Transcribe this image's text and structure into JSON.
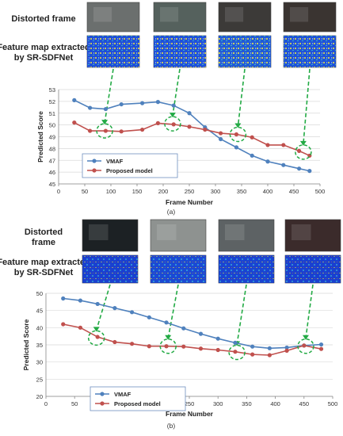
{
  "panels": [
    {
      "caption": "(a)",
      "row1_label": "Distorted frame",
      "row2_label_line1": "Feature map extracted",
      "row2_label_line2": "by SR-SDFNet",
      "thumb_colors": [
        "#6b6f6e",
        "#55615d",
        "#3c3a38",
        "#3a3431"
      ],
      "map_colors": [
        "#1f4fd8",
        "#2457e0",
        "#2a7fd0",
        "#1f5fd8"
      ]
    },
    {
      "caption": "(b)",
      "row1_label_line1": "Distorted",
      "row1_label_line2": "frame",
      "row2_label_line1": "Feature map extracted",
      "row2_label_line2": "by SR-SDFNet",
      "thumb_colors": [
        "#1c2124",
        "#8e9290",
        "#5d6264",
        "#3b2b2b"
      ],
      "map_colors": [
        "#1a3fd0",
        "#1d55d8",
        "#1a48d4",
        "#1a3fd0"
      ]
    }
  ],
  "chart_data": [
    {
      "type": "line",
      "title": "",
      "xlabel": "Frame Number",
      "ylabel": "Predicted  Score",
      "xlim": [
        0,
        500
      ],
      "ylim": [
        45,
        53
      ],
      "xticks": [
        0,
        50,
        100,
        150,
        200,
        250,
        300,
        350,
        400,
        450,
        500
      ],
      "yticks": [
        45,
        46,
        47,
        48,
        49,
        50,
        51,
        52,
        53
      ],
      "legend_position": "lower-left",
      "grid": "horizontal",
      "highlight_points": [
        {
          "x": 88,
          "y": 49.5
        },
        {
          "x": 218,
          "y": 50.1
        },
        {
          "x": 343,
          "y": 49.2
        },
        {
          "x": 468,
          "y": 47.7
        }
      ],
      "series": [
        {
          "name": "VMAF",
          "color": "#4f81bd",
          "x": [
            30,
            60,
            90,
            120,
            160,
            190,
            220,
            250,
            280,
            310,
            340,
            370,
            400,
            430,
            460,
            480
          ],
          "y": [
            52.1,
            51.45,
            51.35,
            51.75,
            51.85,
            51.95,
            51.65,
            51.0,
            49.8,
            48.8,
            48.1,
            47.4,
            46.9,
            46.6,
            46.3,
            46.1
          ]
        },
        {
          "name": "Proposed model",
          "color": "#c0504d",
          "x": [
            30,
            60,
            90,
            120,
            160,
            190,
            220,
            250,
            280,
            310,
            340,
            370,
            400,
            430,
            460,
            480
          ],
          "y": [
            50.2,
            49.5,
            49.5,
            49.45,
            49.6,
            50.15,
            50.05,
            49.85,
            49.6,
            49.3,
            49.2,
            48.95,
            48.3,
            48.3,
            47.8,
            47.4
          ]
        }
      ]
    },
    {
      "type": "line",
      "title": "",
      "xlabel": "Frame Number",
      "ylabel": "Predicted  Score",
      "xlim": [
        0,
        500
      ],
      "ylim": [
        20,
        50
      ],
      "xticks": [
        0,
        50,
        100,
        150,
        200,
        250,
        300,
        350,
        400,
        450,
        500
      ],
      "yticks": [
        20,
        25,
        30,
        35,
        40,
        45,
        50
      ],
      "legend_position": "lower-left",
      "grid": "horizontal",
      "highlight_points": [
        {
          "x": 88,
          "y": 37.0
        },
        {
          "x": 213,
          "y": 34.6
        },
        {
          "x": 333,
          "y": 32.8
        },
        {
          "x": 453,
          "y": 34.6
        }
      ],
      "series": [
        {
          "name": "VMAF",
          "color": "#4f81bd",
          "x": [
            30,
            60,
            90,
            120,
            150,
            180,
            210,
            240,
            270,
            300,
            330,
            360,
            390,
            420,
            450,
            480
          ],
          "y": [
            48.5,
            47.9,
            46.9,
            45.7,
            44.5,
            43.0,
            41.5,
            39.8,
            38.2,
            36.8,
            35.6,
            34.5,
            34.0,
            34.2,
            34.8,
            35.1
          ]
        },
        {
          "name": "Proposed model",
          "color": "#c0504d",
          "x": [
            30,
            60,
            90,
            120,
            150,
            180,
            210,
            240,
            270,
            300,
            330,
            360,
            390,
            420,
            450,
            480
          ],
          "y": [
            41.0,
            40.0,
            37.3,
            35.8,
            35.3,
            34.6,
            34.6,
            34.5,
            33.9,
            33.5,
            33.0,
            32.2,
            32.0,
            33.3,
            34.8,
            33.8
          ]
        }
      ]
    }
  ]
}
